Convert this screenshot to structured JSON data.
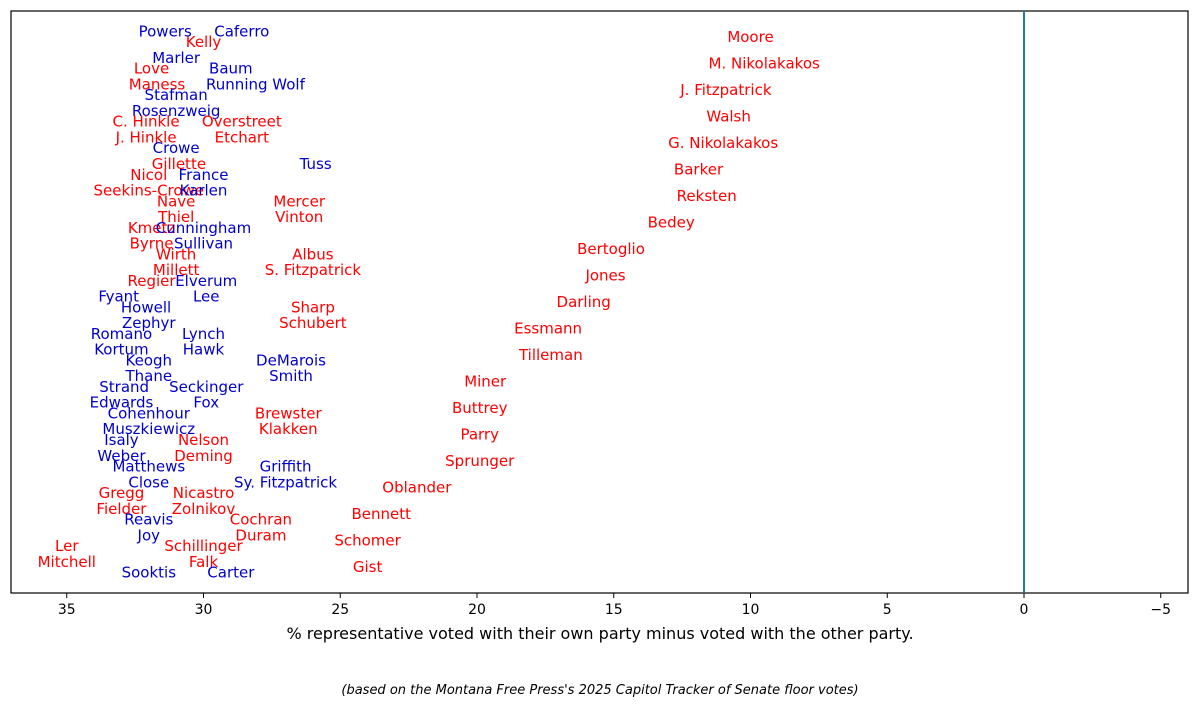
{
  "colors": {
    "republican": "#ff0000",
    "democrat": "#0000cc",
    "zero_line": "#1f77b4",
    "frame": "#000000"
  },
  "chart_data": {
    "type": "scatter",
    "title": "",
    "xlabel": "% representative voted with their own party minus voted with the other party.",
    "caption": "(based on the Montana Free Press's 2025 Capitol Tracker of Senate floor votes)",
    "xlim": [
      37,
      -6
    ],
    "x_inverted": true,
    "xticks": [
      35,
      30,
      25,
      20,
      15,
      10,
      5,
      0,
      -5
    ],
    "xtick_labels": [
      "35",
      "30",
      "25",
      "20",
      "15",
      "10",
      "5",
      "0",
      "−5"
    ],
    "reference_line_x": 0,
    "ylim": [
      0,
      53
    ],
    "points": [
      {
        "name": "Powers",
        "party": "D",
        "x": 31.4,
        "y": 52
      },
      {
        "name": "Caferro",
        "party": "D",
        "x": 28.6,
        "y": 52
      },
      {
        "name": "Kelly",
        "party": "R",
        "x": 30.0,
        "y": 51
      },
      {
        "name": "Moore",
        "party": "R",
        "x": 10.0,
        "y": 51.5
      },
      {
        "name": "Marler",
        "party": "D",
        "x": 31.0,
        "y": 49.5
      },
      {
        "name": "Love",
        "party": "R",
        "x": 31.9,
        "y": 48.5
      },
      {
        "name": "Baum",
        "party": "D",
        "x": 29.0,
        "y": 48.5
      },
      {
        "name": "M. Nikolakakos",
        "party": "R",
        "x": 9.5,
        "y": 49
      },
      {
        "name": "Maness",
        "party": "R",
        "x": 31.7,
        "y": 47
      },
      {
        "name": "Running Wolf",
        "party": "D",
        "x": 28.1,
        "y": 47
      },
      {
        "name": "J. Fitzpatrick",
        "party": "R",
        "x": 10.9,
        "y": 46.5
      },
      {
        "name": "Stafman",
        "party": "D",
        "x": 31.0,
        "y": 46
      },
      {
        "name": "Rosenzweig",
        "party": "D",
        "x": 31.0,
        "y": 44.5
      },
      {
        "name": "Walsh",
        "party": "R",
        "x": 10.8,
        "y": 44
      },
      {
        "name": "C. Hinkle",
        "party": "R",
        "x": 32.1,
        "y": 43.5
      },
      {
        "name": "Overstreet",
        "party": "R",
        "x": 28.6,
        "y": 43.5
      },
      {
        "name": "J. Hinkle",
        "party": "R",
        "x": 32.1,
        "y": 42
      },
      {
        "name": "Etchart",
        "party": "R",
        "x": 28.6,
        "y": 42
      },
      {
        "name": "G. Nikolakakos",
        "party": "R",
        "x": 11.0,
        "y": 41.5
      },
      {
        "name": "Crowe",
        "party": "D",
        "x": 31.0,
        "y": 41
      },
      {
        "name": "Gillette",
        "party": "R",
        "x": 30.9,
        "y": 39.5
      },
      {
        "name": "Tuss",
        "party": "D",
        "x": 25.9,
        "y": 39.5
      },
      {
        "name": "Nicol",
        "party": "R",
        "x": 32.0,
        "y": 38.5
      },
      {
        "name": "France",
        "party": "D",
        "x": 30.0,
        "y": 38.5
      },
      {
        "name": "Barker",
        "party": "R",
        "x": 11.9,
        "y": 39
      },
      {
        "name": "Seekins-Crowe",
        "party": "R",
        "x": 32.0,
        "y": 37
      },
      {
        "name": "Karlen",
        "party": "D",
        "x": 30.0,
        "y": 37
      },
      {
        "name": "Reksten",
        "party": "R",
        "x": 11.6,
        "y": 36.5
      },
      {
        "name": "Nave",
        "party": "R",
        "x": 31.0,
        "y": 36
      },
      {
        "name": "Mercer",
        "party": "R",
        "x": 26.5,
        "y": 36
      },
      {
        "name": "Thiel",
        "party": "R",
        "x": 31.0,
        "y": 34.5
      },
      {
        "name": "Vinton",
        "party": "R",
        "x": 26.5,
        "y": 34.5
      },
      {
        "name": "Bedey",
        "party": "R",
        "x": 12.9,
        "y": 34
      },
      {
        "name": "Kmetz",
        "party": "R",
        "x": 31.9,
        "y": 33.5
      },
      {
        "name": "Cunningham",
        "party": "D",
        "x": 30.0,
        "y": 33.5
      },
      {
        "name": "Byrne",
        "party": "R",
        "x": 31.9,
        "y": 32
      },
      {
        "name": "Sullivan",
        "party": "D",
        "x": 30.0,
        "y": 32
      },
      {
        "name": "Bertoglio",
        "party": "R",
        "x": 15.1,
        "y": 31.5
      },
      {
        "name": "Wirth",
        "party": "R",
        "x": 31.0,
        "y": 31
      },
      {
        "name": "Albus",
        "party": "R",
        "x": 26.0,
        "y": 31
      },
      {
        "name": "Millett",
        "party": "R",
        "x": 31.0,
        "y": 29.5
      },
      {
        "name": "S. Fitzpatrick",
        "party": "R",
        "x": 26.0,
        "y": 29.5
      },
      {
        "name": "Jones",
        "party": "R",
        "x": 15.3,
        "y": 29
      },
      {
        "name": "Regier",
        "party": "R",
        "x": 31.9,
        "y": 28.5
      },
      {
        "name": "Elverum",
        "party": "D",
        "x": 29.9,
        "y": 28.5
      },
      {
        "name": "Fyant",
        "party": "D",
        "x": 33.1,
        "y": 27
      },
      {
        "name": "Lee",
        "party": "D",
        "x": 29.9,
        "y": 27
      },
      {
        "name": "Darling",
        "party": "R",
        "x": 16.1,
        "y": 26.5
      },
      {
        "name": "Howell",
        "party": "D",
        "x": 32.1,
        "y": 26
      },
      {
        "name": "Sharp",
        "party": "R",
        "x": 26.0,
        "y": 26
      },
      {
        "name": "Zephyr",
        "party": "D",
        "x": 32.0,
        "y": 24.5
      },
      {
        "name": "Schubert",
        "party": "R",
        "x": 26.0,
        "y": 24.5
      },
      {
        "name": "Essmann",
        "party": "R",
        "x": 17.4,
        "y": 24
      },
      {
        "name": "Romano",
        "party": "D",
        "x": 33.0,
        "y": 23.5
      },
      {
        "name": "Lynch",
        "party": "D",
        "x": 30.0,
        "y": 23.5
      },
      {
        "name": "Kortum",
        "party": "D",
        "x": 33.0,
        "y": 22
      },
      {
        "name": "Hawk",
        "party": "D",
        "x": 30.0,
        "y": 22
      },
      {
        "name": "Tilleman",
        "party": "R",
        "x": 17.3,
        "y": 21.5
      },
      {
        "name": "Keogh",
        "party": "D",
        "x": 32.0,
        "y": 21
      },
      {
        "name": "DeMarois",
        "party": "D",
        "x": 26.8,
        "y": 21
      },
      {
        "name": "Thane",
        "party": "D",
        "x": 32.0,
        "y": 19.5
      },
      {
        "name": "Smith",
        "party": "D",
        "x": 26.8,
        "y": 19.5
      },
      {
        "name": "Miner",
        "party": "R",
        "x": 19.7,
        "y": 19
      },
      {
        "name": "Strand",
        "party": "D",
        "x": 32.9,
        "y": 18.5
      },
      {
        "name": "Seckinger",
        "party": "D",
        "x": 29.9,
        "y": 18.5
      },
      {
        "name": "Edwards",
        "party": "D",
        "x": 33.0,
        "y": 17
      },
      {
        "name": "Fox",
        "party": "D",
        "x": 29.9,
        "y": 17
      },
      {
        "name": "Buttrey",
        "party": "R",
        "x": 19.9,
        "y": 16.5
      },
      {
        "name": "Cohenhour",
        "party": "D",
        "x": 32.0,
        "y": 16
      },
      {
        "name": "Brewster",
        "party": "R",
        "x": 26.9,
        "y": 16
      },
      {
        "name": "Muszkiewicz",
        "party": "D",
        "x": 32.0,
        "y": 14.5
      },
      {
        "name": "Klakken",
        "party": "R",
        "x": 26.9,
        "y": 14.5
      },
      {
        "name": "Parry",
        "party": "R",
        "x": 19.9,
        "y": 14
      },
      {
        "name": "Isaly",
        "party": "D",
        "x": 33.0,
        "y": 13.5
      },
      {
        "name": "Nelson",
        "party": "R",
        "x": 30.0,
        "y": 13.5
      },
      {
        "name": "Weber",
        "party": "D",
        "x": 33.0,
        "y": 12
      },
      {
        "name": "Deming",
        "party": "R",
        "x": 30.0,
        "y": 12
      },
      {
        "name": "Sprunger",
        "party": "R",
        "x": 19.9,
        "y": 11.5
      },
      {
        "name": "Matthews",
        "party": "D",
        "x": 32.0,
        "y": 11
      },
      {
        "name": "Griffith",
        "party": "D",
        "x": 27.0,
        "y": 11
      },
      {
        "name": "Close",
        "party": "D",
        "x": 32.0,
        "y": 9.5
      },
      {
        "name": "Sy. Fitzpatrick",
        "party": "D",
        "x": 27.0,
        "y": 9.5
      },
      {
        "name": "Oblander",
        "party": "R",
        "x": 22.2,
        "y": 9
      },
      {
        "name": "Gregg",
        "party": "R",
        "x": 33.0,
        "y": 8.5
      },
      {
        "name": "Nicastro",
        "party": "R",
        "x": 30.0,
        "y": 8.5
      },
      {
        "name": "Fielder",
        "party": "R",
        "x": 33.0,
        "y": 7
      },
      {
        "name": "Zolnikov",
        "party": "R",
        "x": 30.0,
        "y": 7
      },
      {
        "name": "Bennett",
        "party": "R",
        "x": 23.5,
        "y": 6.5
      },
      {
        "name": "Reavis",
        "party": "D",
        "x": 32.0,
        "y": 6
      },
      {
        "name": "Cochran",
        "party": "R",
        "x": 27.9,
        "y": 6
      },
      {
        "name": "Joy",
        "party": "D",
        "x": 32.0,
        "y": 4.5
      },
      {
        "name": "Duram",
        "party": "R",
        "x": 27.9,
        "y": 4.5
      },
      {
        "name": "Schomer",
        "party": "R",
        "x": 24.0,
        "y": 4
      },
      {
        "name": "Ler",
        "party": "R",
        "x": 35.0,
        "y": 3.5
      },
      {
        "name": "Schillinger",
        "party": "R",
        "x": 30.0,
        "y": 3.5
      },
      {
        "name": "Mitchell",
        "party": "R",
        "x": 35.0,
        "y": 2
      },
      {
        "name": "Falk",
        "party": "R",
        "x": 30.0,
        "y": 2
      },
      {
        "name": "Gist",
        "party": "R",
        "x": 24.0,
        "y": 1.5
      },
      {
        "name": "Sooktis",
        "party": "D",
        "x": 32.0,
        "y": 1
      },
      {
        "name": "Carter",
        "party": "D",
        "x": 29.0,
        "y": 1
      }
    ]
  }
}
